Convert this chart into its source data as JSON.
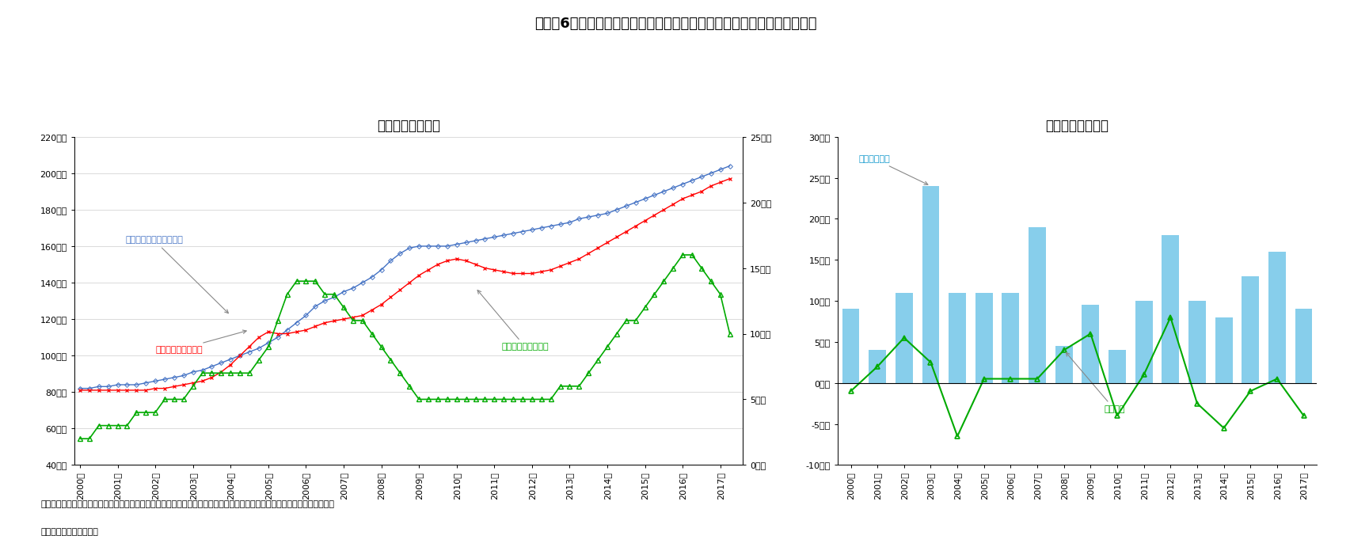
{
  "title": "図表－6　東京都心部Ａクラスビルの賃貸可能面積・賃貸面積・空室面積",
  "subtitle_left": "＜四半期末面積＞",
  "subtitle_right": "＜新規供給面積＞",
  "note": "（注）空室面積として現空面積を利用。現空面積とは調査時点で公開募集されている空室面積のうち即入居可能な面積のこと",
  "source": "（出所）三幸エステート",
  "left_chart": {
    "rentable_area": [
      82,
      82,
      83,
      83,
      84,
      84,
      84,
      85,
      86,
      87,
      88,
      89,
      91,
      92,
      94,
      96,
      98,
      100,
      102,
      104,
      107,
      110,
      114,
      118,
      122,
      127,
      130,
      132,
      135,
      137,
      140,
      143,
      147,
      152,
      156,
      159,
      160,
      160,
      160,
      160,
      161,
      162,
      163,
      164,
      165,
      166,
      167,
      168,
      169,
      170,
      171,
      172,
      173,
      175,
      176,
      177,
      178,
      180,
      182,
      184,
      186,
      188,
      190,
      192,
      194,
      196,
      198,
      200,
      202,
      204
    ],
    "leased_area": [
      81,
      81,
      81,
      81,
      81,
      81,
      81,
      81,
      82,
      82,
      83,
      84,
      85,
      86,
      88,
      91,
      95,
      100,
      105,
      110,
      113,
      112,
      112,
      113,
      114,
      116,
      118,
      119,
      120,
      121,
      122,
      125,
      128,
      132,
      136,
      140,
      144,
      147,
      150,
      152,
      153,
      152,
      150,
      148,
      147,
      146,
      145,
      145,
      145,
      146,
      147,
      149,
      151,
      153,
      156,
      159,
      162,
      165,
      168,
      171,
      174,
      177,
      180,
      183,
      186,
      188,
      190,
      193,
      195,
      197
    ],
    "vacancy_area": [
      2,
      2,
      3,
      3,
      3,
      3,
      4,
      4,
      4,
      5,
      5,
      5,
      6,
      7,
      7,
      7,
      7,
      7,
      7,
      8,
      9,
      11,
      13,
      14,
      14,
      14,
      13,
      13,
      12,
      11,
      11,
      10,
      9,
      8,
      7,
      6,
      5,
      5,
      5,
      5,
      5,
      5,
      5,
      5,
      5,
      5,
      5,
      5,
      5,
      5,
      5,
      6,
      6,
      6,
      7,
      8,
      9,
      10,
      11,
      11,
      12,
      13,
      14,
      15,
      16,
      16,
      15,
      14,
      13,
      10
    ],
    "left_ylim": [
      40,
      220
    ],
    "left_yticks": [
      40,
      60,
      80,
      100,
      120,
      140,
      160,
      180,
      200,
      220
    ],
    "right_ylim": [
      0,
      25
    ],
    "right_yticks": [
      0,
      5,
      10,
      15,
      20,
      25
    ],
    "label_rentable": "賃貸可能面積（左目盛）",
    "label_leased": "賃貸面積（左目盛）",
    "label_vacancy": "現空面積（右目盛）",
    "color_rentable": "#4472C4",
    "color_leased": "#FF0000",
    "color_vacancy": "#00AA00"
  },
  "right_chart": {
    "years_labels": [
      "2000年",
      "2001年",
      "2002年",
      "2003年",
      "2004年",
      "2005年",
      "2006年",
      "2007年",
      "2008年",
      "2009年",
      "2010年",
      "2011年",
      "2012年",
      "2013年",
      "2014年",
      "2015年",
      "2016年",
      "2017年"
    ],
    "supply_area": [
      9.0,
      4.0,
      11.0,
      24.0,
      11.0,
      11.0,
      11.0,
      19.0,
      4.5,
      9.5,
      4.0,
      10.0,
      18.0,
      10.0,
      8.0,
      13.0,
      16.0,
      9.0
    ],
    "vacancy_change": [
      -1.0,
      2.0,
      5.5,
      2.5,
      -6.5,
      0.5,
      0.5,
      0.5,
      4.0,
      6.0,
      -4.0,
      1.0,
      8.0,
      -2.5,
      -5.5,
      -1.0,
      0.5,
      -4.0
    ],
    "bar_color": "#87CEEB",
    "line_color": "#00AA00",
    "ylim": [
      -10,
      30
    ],
    "yticks": [
      -10,
      -5,
      0,
      5,
      10,
      15,
      20,
      25,
      30
    ],
    "label_supply": "新規供給面積",
    "label_vacancy": "空室面積"
  },
  "background_color": "#FFFFFF"
}
